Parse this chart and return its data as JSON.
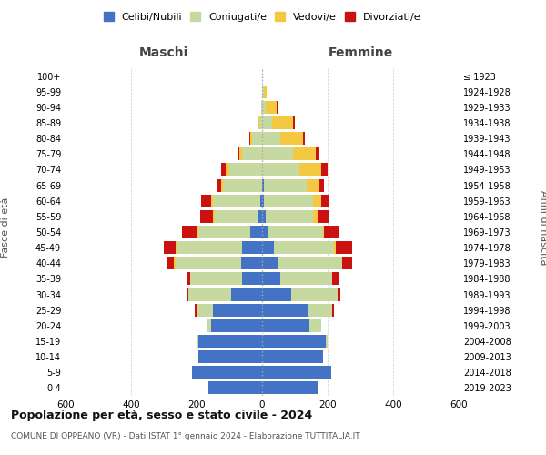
{
  "age_groups": [
    "0-4",
    "5-9",
    "10-14",
    "15-19",
    "20-24",
    "25-29",
    "30-34",
    "35-39",
    "40-44",
    "45-49",
    "50-54",
    "55-59",
    "60-64",
    "65-69",
    "70-74",
    "75-79",
    "80-84",
    "85-89",
    "90-94",
    "95-99",
    "100+"
  ],
  "birth_years": [
    "2019-2023",
    "2014-2018",
    "2009-2013",
    "2004-2008",
    "1999-2003",
    "1994-1998",
    "1989-1993",
    "1984-1988",
    "1979-1983",
    "1974-1978",
    "1969-1973",
    "1964-1968",
    "1959-1963",
    "1954-1958",
    "1949-1953",
    "1944-1948",
    "1939-1943",
    "1934-1938",
    "1929-1933",
    "1924-1928",
    "≤ 1923"
  ],
  "maschi": {
    "celibi": [
      165,
      215,
      195,
      195,
      155,
      150,
      95,
      60,
      65,
      60,
      35,
      15,
      5,
      0,
      0,
      0,
      0,
      0,
      0,
      0,
      0
    ],
    "coniugati": [
      0,
      0,
      0,
      5,
      15,
      50,
      130,
      160,
      200,
      200,
      160,
      130,
      145,
      120,
      100,
      60,
      30,
      8,
      2,
      0,
      0
    ],
    "vedovi": [
      0,
      0,
      0,
      0,
      0,
      0,
      0,
      0,
      5,
      5,
      5,
      5,
      5,
      5,
      10,
      10,
      5,
      2,
      0,
      0,
      0
    ],
    "divorziati": [
      0,
      0,
      0,
      0,
      0,
      5,
      5,
      10,
      20,
      35,
      45,
      40,
      30,
      10,
      15,
      5,
      5,
      5,
      0,
      0,
      0
    ]
  },
  "femmine": {
    "nubili": [
      170,
      210,
      185,
      195,
      145,
      140,
      90,
      55,
      50,
      35,
      20,
      10,
      5,
      5,
      0,
      0,
      0,
      0,
      0,
      0,
      0
    ],
    "coniugate": [
      0,
      0,
      0,
      5,
      35,
      75,
      140,
      160,
      195,
      185,
      165,
      145,
      150,
      130,
      115,
      95,
      55,
      30,
      10,
      5,
      0
    ],
    "vedove": [
      0,
      0,
      0,
      0,
      0,
      0,
      0,
      0,
      0,
      5,
      5,
      15,
      25,
      40,
      65,
      70,
      70,
      65,
      35,
      10,
      0
    ],
    "divorziate": [
      0,
      0,
      0,
      0,
      0,
      5,
      10,
      20,
      30,
      50,
      45,
      35,
      25,
      15,
      20,
      10,
      5,
      5,
      5,
      0,
      0
    ]
  },
  "colors": {
    "celibi": "#4472c4",
    "coniugati": "#c5d9a0",
    "vedovi": "#f5c842",
    "divorziati": "#cc1111"
  },
  "legend_labels": [
    "Celibi/Nubili",
    "Coniugati/e",
    "Vedovi/e",
    "Divorziati/e"
  ],
  "title": "Popolazione per età, sesso e stato civile - 2024",
  "subtitle": "COMUNE DI OPPEANO (VR) - Dati ISTAT 1° gennaio 2024 - Elaborazione TUTTITALIA.IT",
  "label_maschi": "Maschi",
  "label_femmine": "Femmine",
  "ylabel_left": "Fasce di età",
  "ylabel_right": "Anni di nascita",
  "xlim": 600,
  "bg_color": "#ffffff",
  "grid_color": "#cccccc"
}
